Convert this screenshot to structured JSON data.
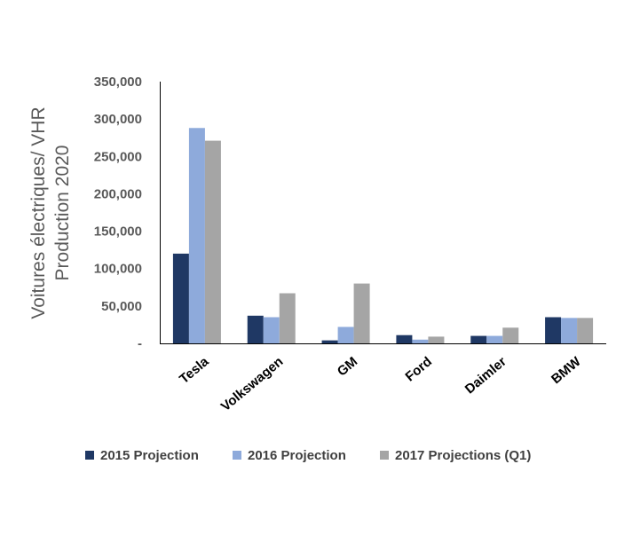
{
  "chart_data": {
    "type": "bar",
    "categories": [
      "Tesla",
      "Volkswagen",
      "GM",
      "Ford",
      "Daimler",
      "BMW"
    ],
    "series": [
      {
        "name": "2015 Projection",
        "color": "#1f3864",
        "values": [
          120000,
          37000,
          4000,
          11000,
          10000,
          35000
        ]
      },
      {
        "name": "2016 Projection",
        "color": "#8eaadb",
        "values": [
          288000,
          35000,
          22000,
          5000,
          10000,
          34000
        ]
      },
      {
        "name": "2017 Projections (Q1)",
        "color": "#a5a5a5",
        "values": [
          271000,
          67000,
          80000,
          9000,
          21000,
          34000
        ]
      }
    ],
    "ylabel_lines": [
      "Voitures électriques/ VHR",
      "Production 2020"
    ],
    "y_ticks": [
      "-",
      "50,000",
      "100,000",
      "150,000",
      "200,000",
      "250,000",
      "300,000",
      "350,000"
    ],
    "ylim": [
      0,
      350000
    ],
    "y_step": 50000,
    "grid": false,
    "legend_position": "bottom"
  }
}
